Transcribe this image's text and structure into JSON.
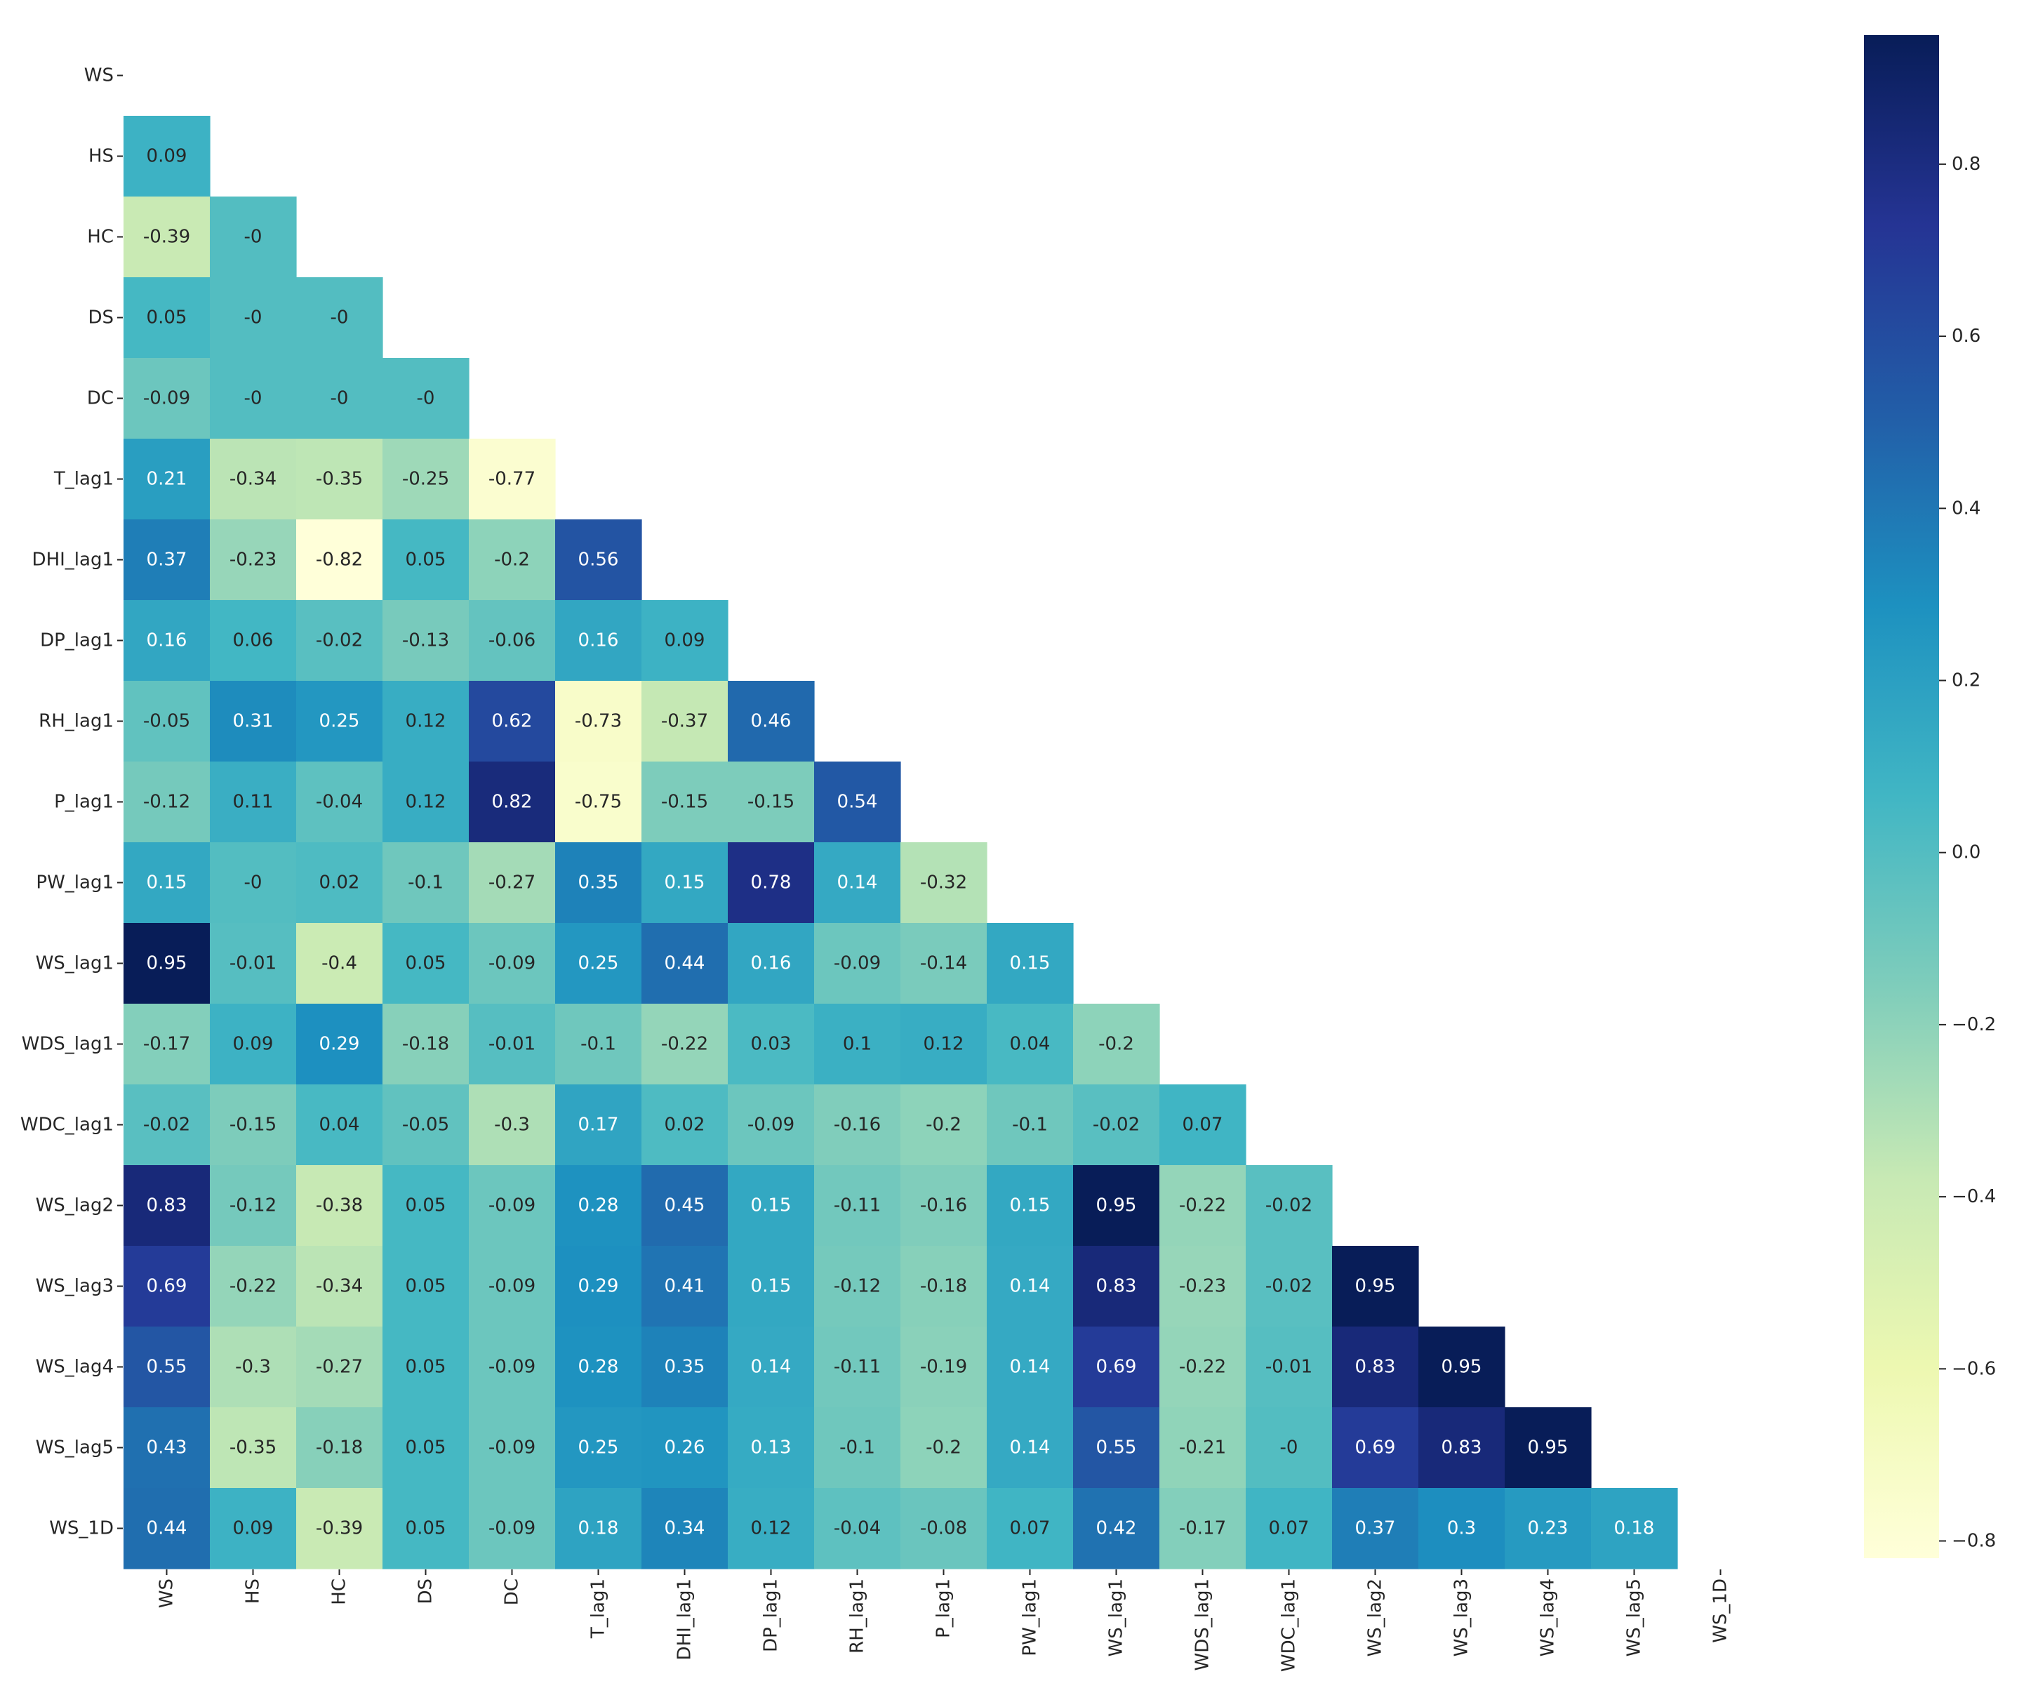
{
  "chart_data": {
    "type": "heatmap",
    "mask": "upper-triangle-including-diagonal",
    "colormap": "YlGnBu",
    "variables": [
      "WS",
      "HS",
      "HC",
      "DS",
      "DC",
      "T_lag1",
      "DHI_lag1",
      "DP_lag1",
      "RH_lag1",
      "P_lag1",
      "PW_lag1",
      "WS_lag1",
      "WDS_lag1",
      "WDC_lag1",
      "WS_lag2",
      "WS_lag3",
      "WS_lag4",
      "WS_lag5",
      "WS_1D"
    ],
    "rows": [
      {
        "label": "WS",
        "values": []
      },
      {
        "label": "HS",
        "values": [
          "0.09"
        ]
      },
      {
        "label": "HC",
        "values": [
          "-0.39",
          "-0"
        ]
      },
      {
        "label": "DS",
        "values": [
          "0.05",
          "-0",
          "-0"
        ]
      },
      {
        "label": "DC",
        "values": [
          "-0.09",
          "-0",
          "-0",
          "-0"
        ]
      },
      {
        "label": "T_lag1",
        "values": [
          "0.21",
          "-0.34",
          "-0.35",
          "-0.25",
          "-0.77"
        ]
      },
      {
        "label": "DHI_lag1",
        "values": [
          "0.37",
          "-0.23",
          "-0.82",
          "0.05",
          "-0.2",
          "0.56"
        ]
      },
      {
        "label": "DP_lag1",
        "values": [
          "0.16",
          "0.06",
          "-0.02",
          "-0.13",
          "-0.06",
          "0.16",
          "0.09"
        ]
      },
      {
        "label": "RH_lag1",
        "values": [
          "-0.05",
          "0.31",
          "0.25",
          "0.12",
          "0.62",
          "-0.73",
          "-0.37",
          "0.46"
        ]
      },
      {
        "label": "P_lag1",
        "values": [
          "-0.12",
          "0.11",
          "-0.04",
          "0.12",
          "0.82",
          "-0.75",
          "-0.15",
          "-0.15",
          "0.54"
        ]
      },
      {
        "label": "PW_lag1",
        "values": [
          "0.15",
          "-0",
          "0.02",
          "-0.1",
          "-0.27",
          "0.35",
          "0.15",
          "0.78",
          "0.14",
          "-0.32"
        ]
      },
      {
        "label": "WS_lag1",
        "values": [
          "0.95",
          "-0.01",
          "-0.4",
          "0.05",
          "-0.09",
          "0.25",
          "0.44",
          "0.16",
          "-0.09",
          "-0.14",
          "0.15"
        ]
      },
      {
        "label": "WDS_lag1",
        "values": [
          "-0.17",
          "0.09",
          "0.29",
          "-0.18",
          "-0.01",
          "-0.1",
          "-0.22",
          "0.03",
          "0.1",
          "0.12",
          "0.04",
          "-0.2"
        ]
      },
      {
        "label": "WDC_lag1",
        "values": [
          "-0.02",
          "-0.15",
          "0.04",
          "-0.05",
          "-0.3",
          "0.17",
          "0.02",
          "-0.09",
          "-0.16",
          "-0.2",
          "-0.1",
          "-0.02",
          "0.07"
        ]
      },
      {
        "label": "WS_lag2",
        "values": [
          "0.83",
          "-0.12",
          "-0.38",
          "0.05",
          "-0.09",
          "0.28",
          "0.45",
          "0.15",
          "-0.11",
          "-0.16",
          "0.15",
          "0.95",
          "-0.22",
          "-0.02"
        ]
      },
      {
        "label": "WS_lag3",
        "values": [
          "0.69",
          "-0.22",
          "-0.34",
          "0.05",
          "-0.09",
          "0.29",
          "0.41",
          "0.15",
          "-0.12",
          "-0.18",
          "0.14",
          "0.83",
          "-0.23",
          "-0.02",
          "0.95"
        ]
      },
      {
        "label": "WS_lag4",
        "values": [
          "0.55",
          "-0.3",
          "-0.27",
          "0.05",
          "-0.09",
          "0.28",
          "0.35",
          "0.14",
          "-0.11",
          "-0.19",
          "0.14",
          "0.69",
          "-0.22",
          "-0.01",
          "0.83",
          "0.95"
        ]
      },
      {
        "label": "WS_lag5",
        "values": [
          "0.43",
          "-0.35",
          "-0.18",
          "0.05",
          "-0.09",
          "0.25",
          "0.26",
          "0.13",
          "-0.1",
          "-0.2",
          "0.14",
          "0.55",
          "-0.21",
          "-0",
          "0.69",
          "0.83",
          "0.95"
        ]
      },
      {
        "label": "WS_1D",
        "values": [
          "0.44",
          "0.09",
          "-0.39",
          "0.05",
          "-0.09",
          "0.18",
          "0.34",
          "0.12",
          "-0.04",
          "-0.08",
          "0.07",
          "0.42",
          "-0.17",
          "0.07",
          "0.37",
          "0.3",
          "0.23",
          "0.18"
        ]
      }
    ],
    "colorbar": {
      "range": [
        -0.82,
        0.95
      ],
      "ticks": [
        0.8,
        0.6,
        0.4,
        0.2,
        0.0,
        -0.2,
        -0.4,
        -0.6,
        -0.8
      ],
      "tick_labels": [
        "0.8",
        "0.6",
        "0.4",
        "0.2",
        "0.0",
        "−0.2",
        "−0.4",
        "−0.6",
        "−0.8"
      ]
    }
  }
}
